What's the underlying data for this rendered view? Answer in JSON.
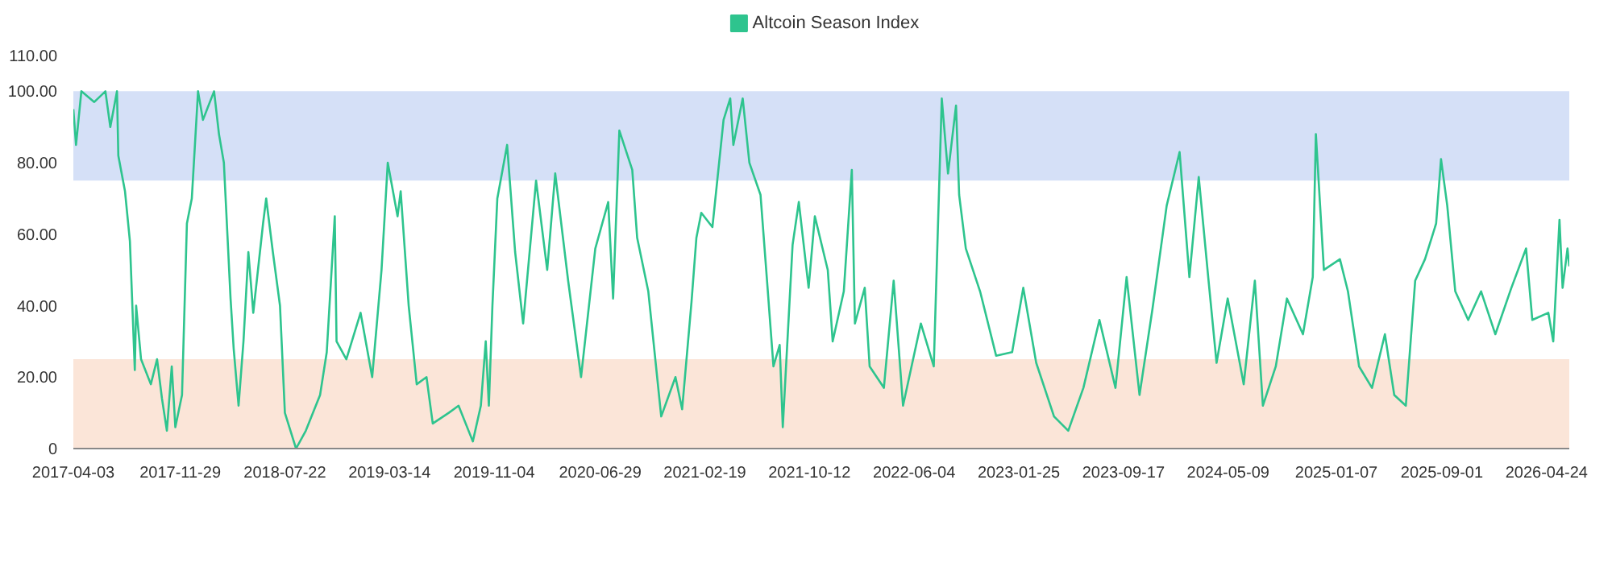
{
  "chart_data": {
    "type": "line",
    "legend": "top",
    "grid": false,
    "marker": "none",
    "line_style": "solid",
    "xlim": [
      "2017-04-03",
      "2026-06-14"
    ],
    "xticks": [
      "2017-04-03",
      "2017-11-29",
      "2018-07-22",
      "2019-03-14",
      "2019-11-04",
      "2020-06-29",
      "2021-02-19",
      "2021-10-12",
      "2022-06-04",
      "2023-01-25",
      "2023-09-17",
      "2024-05-09",
      "2025-01-07",
      "2025-09-01",
      "2026-04-24"
    ],
    "ylim": [
      0,
      110
    ],
    "yticks": [
      0,
      {
        "value": 20,
        "label": "20.00"
      },
      {
        "value": 40,
        "label": "40.00"
      },
      {
        "value": 60,
        "label": "60.00"
      },
      {
        "value": 80,
        "label": "80.00"
      },
      {
        "value": 100,
        "label": "100.00"
      },
      {
        "value": 110,
        "label": "110.00"
      }
    ],
    "bands": [
      {
        "axis": "y",
        "from": 75,
        "to": 100,
        "color": "#d5e0f7"
      },
      {
        "axis": "y",
        "from": 0,
        "to": 25,
        "color": "#fbe5d8"
      }
    ],
    "series": [
      {
        "name": "Altcoin Season Index",
        "color": "#2ec48e",
        "x": [
          "2017-04-03",
          "2017-04-09",
          "2017-04-21",
          "2017-05-20",
          "2017-06-14",
          "2017-06-25",
          "2017-07-10",
          "2017-07-13",
          "2017-07-28",
          "2017-08-08",
          "2017-08-19",
          "2017-08-22",
          "2017-09-02",
          "2017-09-24",
          "2017-10-08",
          "2017-10-19",
          "2017-10-30",
          "2017-11-10",
          "2017-11-18",
          "2017-12-03",
          "2017-12-14",
          "2017-12-25",
          "2018-01-08",
          "2018-01-19",
          "2018-02-13",
          "2018-02-24",
          "2018-03-07",
          "2018-03-22",
          "2018-03-29",
          "2018-04-09",
          "2018-04-20",
          "2018-05-01",
          "2018-05-12",
          "2018-06-03",
          "2018-06-10",
          "2018-06-25",
          "2018-07-11",
          "2018-07-22",
          "2018-08-16",
          "2018-09-07",
          "2018-10-09",
          "2018-10-24",
          "2018-11-11",
          "2018-11-15",
          "2018-12-07",
          "2019-01-08",
          "2019-02-03",
          "2019-02-24",
          "2019-03-10",
          "2019-04-01",
          "2019-04-08",
          "2019-04-26",
          "2019-05-14",
          "2019-06-05",
          "2019-06-19",
          "2019-07-25",
          "2019-08-16",
          "2019-09-17",
          "2019-10-05",
          "2019-10-16",
          "2019-10-23",
          "2019-10-31",
          "2019-11-11",
          "2019-12-03",
          "2019-12-21",
          "2020-01-08",
          "2020-02-06",
          "2020-03-02",
          "2020-03-20",
          "2020-04-18",
          "2020-05-17",
          "2020-06-18",
          "2020-07-17",
          "2020-07-28",
          "2020-08-11",
          "2020-09-09",
          "2020-09-20",
          "2020-10-15",
          "2020-11-13",
          "2020-12-15",
          "2020-12-30",
          "2021-01-20",
          "2021-01-31",
          "2021-02-11",
          "2021-03-08",
          "2021-04-02",
          "2021-04-17",
          "2021-04-24",
          "2021-05-15",
          "2021-05-30",
          "2021-06-24",
          "2021-07-08",
          "2021-07-23",
          "2021-08-06",
          "2021-08-13",
          "2021-09-04",
          "2021-09-18",
          "2021-10-10",
          "2021-10-24",
          "2021-11-22",
          "2021-12-03",
          "2021-12-28",
          "2022-01-15",
          "2022-01-22",
          "2022-02-13",
          "2022-02-24",
          "2022-03-28",
          "2022-04-19",
          "2022-05-10",
          "2022-06-19",
          "2022-07-18",
          "2022-08-05",
          "2022-08-19",
          "2022-09-06",
          "2022-09-13",
          "2022-09-28",
          "2022-10-30",
          "2022-12-05",
          "2023-01-10",
          "2023-02-04",
          "2023-03-05",
          "2023-04-14",
          "2023-05-16",
          "2023-06-19",
          "2023-07-25",
          "2023-08-30",
          "2023-09-24",
          "2023-10-23",
          "2023-11-21",
          "2023-12-23",
          "2024-01-21",
          "2024-02-12",
          "2024-03-04",
          "2024-03-26",
          "2024-04-13",
          "2024-05-08",
          "2024-06-13",
          "2024-07-08",
          "2024-07-26",
          "2024-08-24",
          "2024-09-18",
          "2024-10-24",
          "2024-11-15",
          "2024-11-22",
          "2024-12-10",
          "2025-01-15",
          "2025-02-02",
          "2025-02-27",
          "2025-03-28",
          "2025-04-26",
          "2025-05-17",
          "2025-06-12",
          "2025-07-03",
          "2025-07-25",
          "2025-08-19",
          "2025-08-30",
          "2025-09-13",
          "2025-10-01",
          "2025-10-30",
          "2025-11-28",
          "2025-12-30",
          "2026-02-04",
          "2026-03-09",
          "2026-03-23",
          "2026-04-28",
          "2026-05-09",
          "2026-05-23",
          "2026-05-30",
          "2026-06-10",
          "2026-06-14"
        ],
        "values": [
          95,
          85,
          100,
          97,
          100,
          90,
          100,
          82,
          72,
          58,
          22,
          40,
          25,
          18,
          25,
          14,
          5,
          23,
          6,
          15,
          63,
          70,
          100,
          92,
          100,
          88,
          80,
          42,
          28,
          12,
          30,
          55,
          38,
          63,
          70,
          55,
          40,
          10,
          0,
          5,
          15,
          27,
          65,
          30,
          25,
          38,
          20,
          50,
          80,
          65,
          72,
          40,
          18,
          20,
          7,
          10,
          12,
          2,
          12,
          30,
          12,
          40,
          70,
          85,
          55,
          35,
          75,
          50,
          77,
          47,
          20,
          56,
          69,
          42,
          89,
          78,
          59,
          44,
          9,
          20,
          11,
          41,
          59,
          66,
          62,
          92,
          98,
          85,
          98,
          80,
          71,
          48,
          23,
          29,
          6,
          57,
          69,
          45,
          65,
          50,
          30,
          44,
          78,
          35,
          45,
          23,
          17,
          47,
          12,
          35,
          23,
          98,
          77,
          96,
          71,
          56,
          44,
          26,
          27,
          45,
          24,
          9,
          5,
          17,
          36,
          17,
          48,
          15,
          39,
          68,
          83,
          48,
          76,
          47,
          24,
          42,
          18,
          47,
          12,
          23,
          42,
          32,
          48,
          88,
          50,
          53,
          44,
          23,
          17,
          32,
          15,
          12,
          47,
          53,
          63,
          81,
          68,
          44,
          36,
          44,
          32,
          45,
          56,
          36,
          38,
          30,
          64,
          45,
          56,
          51
        ]
      }
    ]
  }
}
